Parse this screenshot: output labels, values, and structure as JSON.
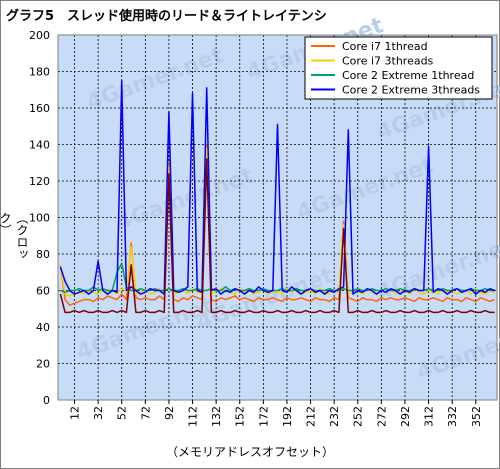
{
  "chart_data": {
    "type": "line",
    "title": "グラフ5　スレッド使用時のリード＆ライトレイテンシ",
    "xlabel": "（メモリアドレスオフセット）",
    "ylabel": "（クロック）",
    "ylim": [
      0,
      200
    ],
    "yticks": [
      "0",
      "20",
      "40",
      "60",
      "80",
      "100",
      "120",
      "140",
      "160",
      "180",
      "200"
    ],
    "xticks": [
      "12",
      "32",
      "52",
      "72",
      "92",
      "112",
      "132",
      "152",
      "172",
      "192",
      "212",
      "232",
      "252",
      "272",
      "292",
      "312",
      "332",
      "352"
    ],
    "xtick_values": [
      12,
      32,
      52,
      72,
      92,
      112,
      132,
      152,
      172,
      192,
      212,
      232,
      252,
      272,
      292,
      312,
      332,
      352
    ],
    "x": [
      0,
      4,
      8,
      12,
      16,
      20,
      24,
      28,
      32,
      36,
      40,
      44,
      48,
      52,
      56,
      60,
      64,
      68,
      72,
      76,
      80,
      84,
      88,
      92,
      96,
      100,
      104,
      108,
      112,
      116,
      120,
      124,
      128,
      132,
      136,
      140,
      144,
      148,
      152,
      156,
      160,
      164,
      168,
      172,
      176,
      180,
      184,
      188,
      192,
      196,
      200,
      204,
      208,
      212,
      216,
      220,
      224,
      228,
      232,
      236,
      240,
      244,
      248,
      252,
      256,
      260,
      264,
      268,
      272,
      276,
      280,
      284,
      288,
      292,
      296,
      300,
      304,
      308,
      312,
      316,
      320,
      324,
      328,
      332,
      336,
      340,
      344,
      348,
      352,
      356,
      360,
      364,
      368
    ],
    "xlim": [
      -2,
      370
    ],
    "grid": true,
    "legend_position": "top-right",
    "series": [
      {
        "name": "Core i7 1thread",
        "color": "#ff6600",
        "values": [
          74,
          55,
          52,
          53,
          54,
          55,
          55,
          54,
          56,
          55,
          57,
          56,
          55,
          58,
          55,
          86,
          56,
          55,
          56,
          55,
          55,
          57,
          55,
          130,
          55,
          54,
          56,
          55,
          57,
          56,
          55,
          140,
          55,
          54,
          56,
          55,
          56,
          57,
          55,
          56,
          55,
          54,
          56,
          55,
          55,
          56,
          55,
          54,
          56,
          55,
          55,
          56,
          55,
          54,
          56,
          55,
          55,
          54,
          56,
          55,
          98,
          56,
          55,
          54,
          56,
          55,
          55,
          54,
          56,
          55,
          56,
          55,
          55,
          56,
          55,
          54,
          56,
          55,
          55,
          56,
          55,
          54,
          56,
          55,
          55,
          54,
          56,
          55,
          54,
          56,
          55,
          54,
          55
        ]
      },
      {
        "name": "Core i7 3threads",
        "color": "#ffcc00",
        "values": [
          74,
          58,
          57,
          58,
          59,
          58,
          60,
          59,
          58,
          61,
          59,
          60,
          58,
          62,
          59,
          84,
          58,
          59,
          60,
          58,
          59,
          61,
          58,
          128,
          58,
          59,
          60,
          58,
          61,
          59,
          58,
          138,
          58,
          60,
          61,
          59,
          60,
          58,
          61,
          59,
          60,
          58,
          59,
          61,
          58,
          60,
          59,
          58,
          61,
          59,
          60,
          58,
          59,
          60,
          58,
          61,
          59,
          58,
          60,
          59,
          96,
          58,
          59,
          60,
          58,
          61,
          59,
          58,
          60,
          59,
          61,
          58,
          59,
          60,
          58,
          61,
          59,
          58,
          60,
          59,
          58,
          61,
          59,
          60,
          58,
          59,
          60,
          58,
          61,
          59,
          58,
          60,
          59
        ]
      },
      {
        "name": "Core 2 Extreme 1thread",
        "color": "#00a060",
        "values": [
          60,
          59,
          60,
          60,
          61,
          60,
          60,
          62,
          60,
          61,
          60,
          60,
          70,
          75,
          62,
          60,
          60,
          61,
          60,
          60,
          61,
          60,
          60,
          61,
          60,
          60,
          61,
          60,
          60,
          61,
          60,
          60,
          61,
          60,
          60,
          62,
          60,
          61,
          60,
          60,
          61,
          60,
          60,
          61,
          60,
          60,
          60,
          61,
          60,
          60,
          61,
          60,
          60,
          61,
          60,
          60,
          60,
          61,
          60,
          60,
          61,
          60,
          60,
          61,
          60,
          60,
          61,
          60,
          60,
          61,
          60,
          60,
          61,
          60,
          60,
          61,
          60,
          60,
          61,
          60,
          60,
          61,
          60,
          60,
          61,
          60,
          60,
          61,
          60,
          60,
          61,
          60,
          60
        ]
      },
      {
        "name": "Core 2 Extreme 3threads",
        "color": "#0000ff",
        "values": [
          73,
          65,
          60,
          58,
          59,
          60,
          58,
          60,
          76,
          60,
          58,
          60,
          59,
          175,
          60,
          62,
          60,
          58,
          59,
          61,
          60,
          60,
          58,
          158,
          60,
          59,
          60,
          62,
          168,
          60,
          59,
          171,
          60,
          61,
          58,
          60,
          59,
          61,
          60,
          58,
          60,
          59,
          62,
          60,
          59,
          60,
          151,
          60,
          59,
          62,
          60,
          58,
          60,
          61,
          59,
          60,
          58,
          60,
          59,
          61,
          62,
          148,
          58,
          60,
          59,
          61,
          60,
          58,
          60,
          59,
          61,
          60,
          58,
          60,
          59,
          61,
          60,
          60,
          139,
          59,
          61,
          60,
          58,
          60,
          61,
          59,
          60,
          61,
          58,
          60,
          59,
          61,
          60
        ]
      },
      {
        "name": "",
        "color": "#800000",
        "values": [
          58,
          48,
          48,
          49,
          48,
          49,
          48,
          48,
          49,
          48,
          48,
          49,
          48,
          49,
          48,
          74,
          48,
          48,
          49,
          48,
          48,
          49,
          48,
          124,
          48,
          48,
          49,
          48,
          48,
          49,
          48,
          132,
          48,
          48,
          49,
          48,
          48,
          49,
          48,
          48,
          49,
          48,
          48,
          49,
          48,
          48,
          49,
          48,
          48,
          49,
          48,
          48,
          49,
          48,
          48,
          49,
          48,
          48,
          49,
          48,
          94,
          48,
          48,
          49,
          48,
          48,
          49,
          48,
          48,
          49,
          48,
          48,
          49,
          48,
          48,
          49,
          48,
          48,
          49,
          48,
          48,
          49,
          48,
          48,
          49,
          48,
          48,
          49,
          48,
          48,
          49,
          48,
          48
        ]
      }
    ],
    "watermark": "4Gamer.net"
  }
}
